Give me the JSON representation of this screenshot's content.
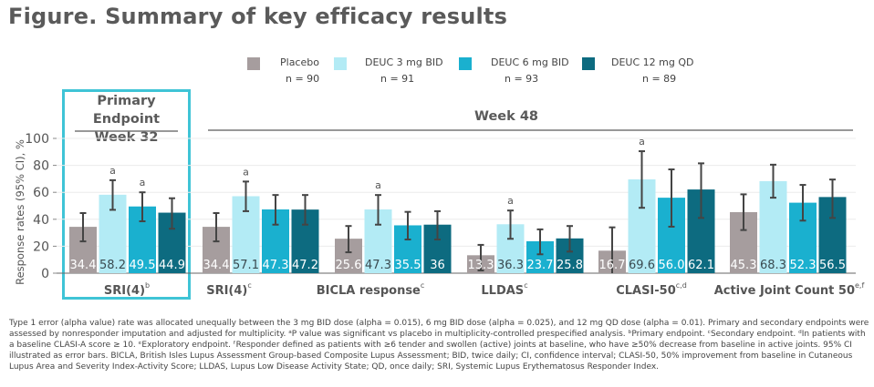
{
  "title": "Figure. Summary of key efficacy results",
  "legend": [
    {
      "label": "Placebo",
      "n": "n = 90",
      "color": "#a69d9e"
    },
    {
      "label": "DEUC 3 mg BID",
      "n": "n = 91",
      "color": "#b3ebf5"
    },
    {
      "label": "DEUC 6 mg BID",
      "n": "n = 93",
      "color": "#1ab0cf"
    },
    {
      "label": "DEUC 12 mg QD",
      "n": "n = 89",
      "color": "#0d6b80"
    }
  ],
  "primary_box": {
    "line1": "Primary Endpoint",
    "line2": "Week 32",
    "border_color": "#3fc4d6"
  },
  "week48_label": "Week 48",
  "footnote": "Type 1 error (alpha value) rate was allocated unequally between the 3 mg BID dose (alpha = 0.015), 6 mg BID dose (alpha = 0.025), and 12 mg QD dose (alpha = 0.01). Primary and secondary endpoints were assessed by nonresponder imputation and adjusted for multiplicity. ᵃP value was significant vs placebo in multiplicity-controlled prespecified analysis. ᵇPrimary endpoint. ᶜSecondary endpoint. ᵈIn patients with a baseline CLASI-A score ≥ 10. ᵉExploratory endpoint. ᶠResponder defined as patients with ≥6 tender and swollen (active) joints at baseline, who have ≥50% decrease from baseline in active joints. 95% CI illustrated as error bars. BICLA, British Isles Lupus Assessment Group-based Composite Lupus Assessment; BID, twice daily; CI, confidence interval; CLASI-50, 50% improvement from baseline in Cutaneous Lupus Area and Severity Index-Activity Score; LLDAS, Lupus Low Disease Activity State; QD, once daily; SRI, Systemic Lupus Erythematosus Responder Index.",
  "chart_data": {
    "type": "bar",
    "title": "Figure. Summary of key efficacy results",
    "xlabel": "",
    "ylabel": "Response rates (95% CI), %",
    "ylim": [
      0,
      100
    ],
    "yticks": [
      0,
      20,
      40,
      60,
      80,
      100
    ],
    "grid": true,
    "legend_position": "top-center",
    "series_names": [
      "Placebo",
      "DEUC 3 mg BID",
      "DEUC 6 mg BID",
      "DEUC 12 mg QD"
    ],
    "series_colors": [
      "#a69d9e",
      "#b3ebf5",
      "#1ab0cf",
      "#0d6b80"
    ],
    "label_colors": [
      "#ffffff",
      "#3a4a50",
      "#ffffff",
      "#ffffff"
    ],
    "annotation_symbol": "a",
    "groups": [
      {
        "name": "SRI(4)",
        "sup": "b",
        "timepoint": "Week 32",
        "values": [
          34.4,
          58.2,
          49.5,
          44.9
        ],
        "labels": [
          "34.4",
          "58.2",
          "49.5",
          "44.9"
        ],
        "ci": [
          [
            23.6,
            44.6
          ],
          [
            47,
            69
          ],
          [
            38.5,
            60
          ],
          [
            33,
            55.6
          ]
        ],
        "sig": [
          false,
          true,
          true,
          false
        ]
      },
      {
        "name": "SRI(4)",
        "sup": "c",
        "timepoint": "Week 48",
        "values": [
          34.4,
          57.1,
          47.3,
          47.2
        ],
        "labels": [
          "34.4",
          "57.1",
          "47.3",
          "47.2"
        ],
        "ci": [
          [
            23.6,
            44.6
          ],
          [
            46,
            68
          ],
          [
            36,
            58
          ],
          [
            36,
            58
          ]
        ],
        "sig": [
          false,
          true,
          false,
          false
        ]
      },
      {
        "name": "BICLA response",
        "sup": "c",
        "timepoint": "Week 48",
        "values": [
          25.6,
          47.3,
          35.5,
          36
        ],
        "labels": [
          "25.6",
          "47.3",
          "35.5",
          "36"
        ],
        "ci": [
          [
            15.5,
            35
          ],
          [
            36,
            58
          ],
          [
            25,
            45.5
          ],
          [
            25,
            46
          ]
        ],
        "sig": [
          false,
          true,
          false,
          false
        ]
      },
      {
        "name": "LLDAS",
        "sup": "c",
        "timepoint": "Week 48",
        "values": [
          13.3,
          36.3,
          23.7,
          25.8
        ],
        "labels": [
          "13.3",
          "36.3",
          "23.7",
          "25.8"
        ],
        "ci": [
          [
            2,
            21
          ],
          [
            25.5,
            46.5
          ],
          [
            14,
            32.5
          ],
          [
            16,
            35
          ]
        ],
        "sig": [
          false,
          true,
          false,
          false
        ]
      },
      {
        "name": "CLASI-50",
        "sup": "c,d",
        "timepoint": "Week 48",
        "values": [
          16.7,
          69.6,
          56.0,
          62.1
        ],
        "labels": [
          "16.7",
          "69.6",
          "56.0",
          "62.1"
        ],
        "ci": [
          [
            0,
            34
          ],
          [
            48.5,
            90.5
          ],
          [
            34.5,
            77
          ],
          [
            41,
            81.5
          ]
        ],
        "sig": [
          false,
          true,
          false,
          false
        ]
      },
      {
        "name": "Active Joint Count 50",
        "sup": "e,f",
        "timepoint": "Week 48",
        "values": [
          45.3,
          68.3,
          52.3,
          56.5
        ],
        "labels": [
          "45.3",
          "68.3",
          "52.3",
          "56.5"
        ],
        "ci": [
          [
            32,
            58.5
          ],
          [
            56,
            80.5
          ],
          [
            39,
            65.5
          ],
          [
            41,
            69.5
          ]
        ],
        "sig": [
          false,
          false,
          false,
          false
        ]
      }
    ]
  }
}
